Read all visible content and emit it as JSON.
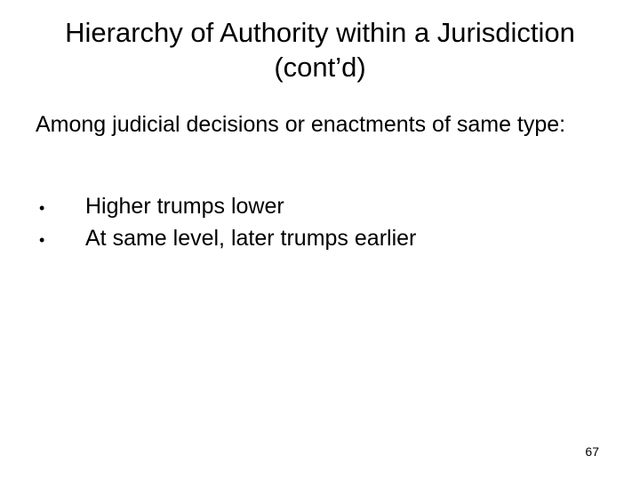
{
  "slide": {
    "title": "Hierarchy of Authority within a Jurisdiction (cont’d)",
    "intro": "Among judicial decisions or enactments of same type:",
    "bullets": [
      "Higher trumps lower",
      "At same level, later trumps earlier"
    ],
    "page_number": "67",
    "style": {
      "background_color": "#ffffff",
      "text_color": "#000000",
      "title_fontsize": 31,
      "body_fontsize": 25,
      "pagenum_fontsize": 14,
      "font_family": "Arial",
      "bullet_marker": "•"
    }
  }
}
